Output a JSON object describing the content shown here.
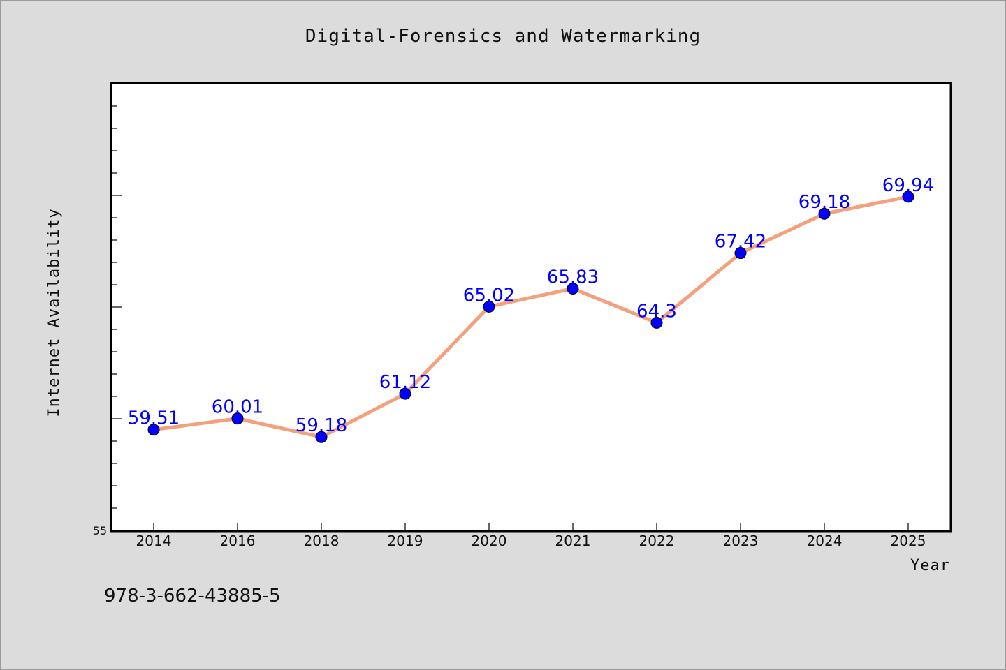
{
  "chart_data": {
    "type": "line",
    "title": "Digital-Forensics and Watermarking",
    "xlabel": "Year",
    "ylabel": "Internet Availability",
    "categories": [
      "2014",
      "2016",
      "2018",
      "2019",
      "2020",
      "2021",
      "2022",
      "2023",
      "2024",
      "2025"
    ],
    "series": [
      {
        "values": [
          59.51,
          60.01,
          59.18,
          61.12,
          65.02,
          65.83,
          64.3,
          67.42,
          69.18,
          69.94
        ],
        "data_labels": [
          "59.51",
          "60.01",
          "59.18",
          "61.12",
          "65.02",
          "65.83",
          "64.3",
          "67.42",
          "69.18",
          "69.94"
        ],
        "line_color": "#f4a07c",
        "marker_color": "#0000ff"
      }
    ],
    "ylim": [
      55,
      75
    ],
    "y_tick_labels": [
      "55"
    ],
    "grid": false,
    "legend": "none"
  },
  "footer_text": "978-3-662-43885-5",
  "colors": {
    "background": "#dcdcdc",
    "plot_background": "#ffffff",
    "line": "#f4a07c",
    "marker": "#0000ff",
    "data_label": "#0000ff"
  }
}
